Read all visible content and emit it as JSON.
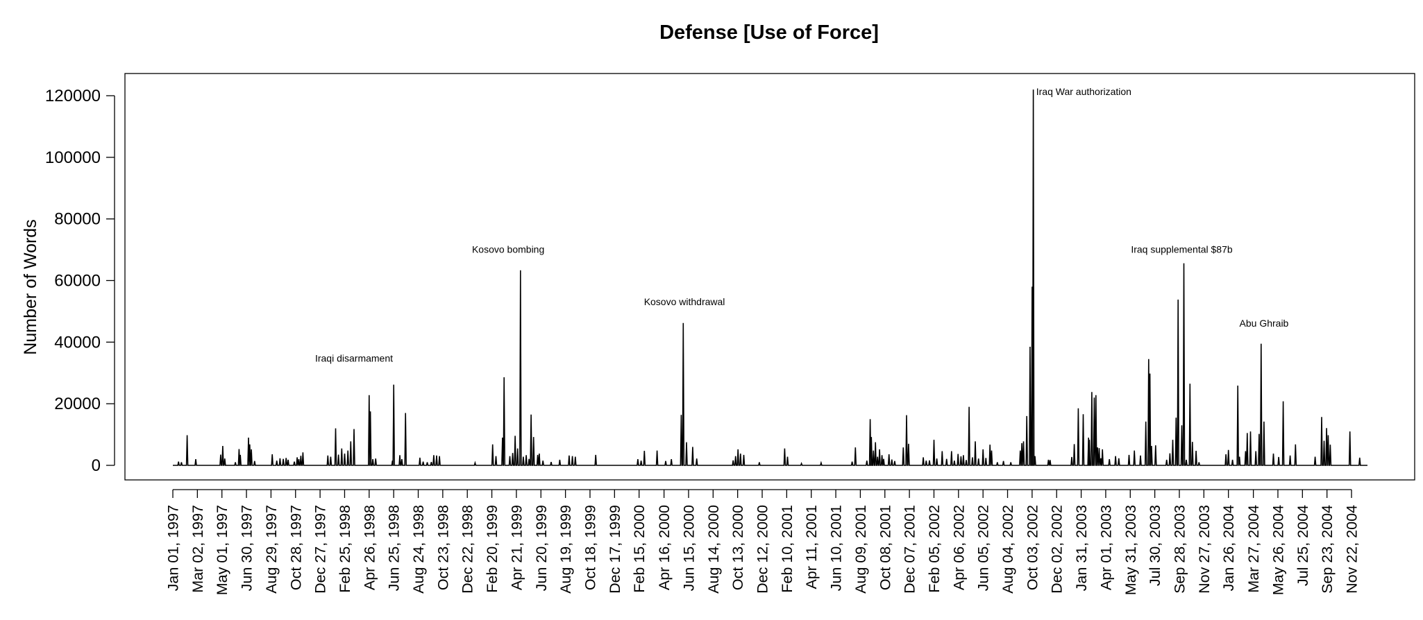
{
  "chart_data": {
    "type": "line",
    "title": "Defense [Use of Force]",
    "xlabel": "",
    "ylabel": "Number of Words",
    "ylim": [
      0,
      125000
    ],
    "yticks": [
      0,
      20000,
      40000,
      60000,
      80000,
      100000,
      120000
    ],
    "ytick_labels": [
      "0",
      "20000",
      "40000",
      "60000",
      "80000",
      "100000",
      "120000"
    ],
    "grid": false,
    "x_ticks": [
      "Jan 01, 1997",
      "Mar 02, 1997",
      "May 01, 1997",
      "Jun 30, 1997",
      "Aug 29, 1997",
      "Oct 28, 1997",
      "Dec 27, 1997",
      "Feb 25, 1998",
      "Apr 26, 1998",
      "Jun 25, 1998",
      "Aug 24, 1998",
      "Oct 23, 1998",
      "Dec 22, 1998",
      "Feb 20, 1999",
      "Apr 21, 1999",
      "Jun 20, 1999",
      "Aug 19, 1999",
      "Oct 18, 1999",
      "Dec 17, 1999",
      "Feb 15, 2000",
      "Apr 16, 2000",
      "Jun 15, 2000",
      "Aug 14, 2000",
      "Oct 13, 2000",
      "Dec 12, 2000",
      "Feb 10, 2001",
      "Apr 11, 2001",
      "Jun 10, 2001",
      "Aug 09, 2001",
      "Oct 08, 2001",
      "Dec 07, 2001",
      "Feb 05, 2002",
      "Apr 06, 2002",
      "Jun 05, 2002",
      "Aug 04, 2002",
      "Oct 03, 2002",
      "Dec 02, 2002",
      "Jan 31, 2003",
      "Apr 01, 2003",
      "May 31, 2003",
      "Jul 30, 2003",
      "Sep 28, 2003",
      "Nov 27, 2003",
      "Jan 26, 2004",
      "Mar 27, 2004",
      "May 26, 2004",
      "Jul 25, 2004",
      "Sep 23, 2004",
      "Nov 22, 2004"
    ],
    "x_range": [
      "Jan 01, 1997",
      "Dec 31, 2004"
    ],
    "series": [
      {
        "values_note": "",
        "points": [
          [
            "1997-01-15",
            1200
          ],
          [
            "1997-01-22",
            1000
          ],
          [
            "1997-02-05",
            9800
          ],
          [
            "1997-02-26",
            2000
          ],
          [
            "1997-04-28",
            3500
          ],
          [
            "1997-05-03",
            6300
          ],
          [
            "1997-05-08",
            2200
          ],
          [
            "1997-06-03",
            1000
          ],
          [
            "1997-06-12",
            5300
          ],
          [
            "1997-06-15",
            3400
          ],
          [
            "1997-07-05",
            9000
          ],
          [
            "1997-07-08",
            6800
          ],
          [
            "1997-07-12",
            5200
          ],
          [
            "1997-07-20",
            1400
          ],
          [
            "1997-09-01",
            3600
          ],
          [
            "1997-09-12",
            1500
          ],
          [
            "1997-09-20",
            2300
          ],
          [
            "1997-09-28",
            2100
          ],
          [
            "1997-10-05",
            2400
          ],
          [
            "1997-10-10",
            1800
          ],
          [
            "1997-10-25",
            1200
          ],
          [
            "1997-11-01",
            2600
          ],
          [
            "1997-11-05",
            2000
          ],
          [
            "1997-11-10",
            3100
          ],
          [
            "1997-11-15",
            4200
          ],
          [
            "1998-01-15",
            3200
          ],
          [
            "1998-01-22",
            2800
          ],
          [
            "1998-02-03",
            12000
          ],
          [
            "1998-02-10",
            3500
          ],
          [
            "1998-02-18",
            5500
          ],
          [
            "1998-02-25",
            3800
          ],
          [
            "1998-03-05",
            4800
          ],
          [
            "1998-03-12",
            7800
          ],
          [
            "1998-03-20",
            11800
          ],
          [
            "1998-04-26",
            22800
          ],
          [
            "1998-04-29",
            17500
          ],
          [
            "1998-05-05",
            2000
          ],
          [
            "1998-05-12",
            2200
          ],
          [
            "1998-06-22",
            1500
          ],
          [
            "1998-06-25",
            26200
          ],
          [
            "1998-07-10",
            3300
          ],
          [
            "1998-07-15",
            2000
          ],
          [
            "1998-07-24",
            17000
          ],
          [
            "1998-08-28",
            2500
          ],
          [
            "1998-09-05",
            1200
          ],
          [
            "1998-09-15",
            1000
          ],
          [
            "1998-09-25",
            1100
          ],
          [
            "1998-10-01",
            3300
          ],
          [
            "1998-10-08",
            3200
          ],
          [
            "1998-10-15",
            3000
          ],
          [
            "1999-01-10",
            800
          ],
          [
            "1999-02-22",
            6800
          ],
          [
            "1999-03-02",
            3000
          ],
          [
            "1999-03-18",
            9000
          ],
          [
            "1999-03-22",
            28600
          ],
          [
            "1999-04-05",
            3000
          ],
          [
            "1999-04-12",
            4000
          ],
          [
            "1999-04-18",
            9600
          ],
          [
            "1999-04-24",
            5500
          ],
          [
            "1999-05-01",
            63300
          ],
          [
            "1999-05-08",
            2800
          ],
          [
            "1999-05-15",
            3300
          ],
          [
            "1999-05-22",
            2100
          ],
          [
            "1999-05-27",
            16500
          ],
          [
            "1999-06-02",
            9200
          ],
          [
            "1999-06-12",
            3400
          ],
          [
            "1999-06-16",
            3800
          ],
          [
            "1999-06-25",
            1500
          ],
          [
            "1999-07-15",
            1100
          ],
          [
            "1999-08-05",
            1800
          ],
          [
            "1999-08-28",
            3200
          ],
          [
            "1999-09-05",
            3000
          ],
          [
            "1999-09-12",
            2800
          ],
          [
            "1999-11-01",
            3400
          ],
          [
            "2000-02-12",
            2000
          ],
          [
            "2000-02-20",
            1500
          ],
          [
            "2000-02-28",
            4700
          ],
          [
            "2000-03-30",
            4800
          ],
          [
            "2000-04-20",
            1400
          ],
          [
            "2000-05-04",
            2000
          ],
          [
            "2000-05-28",
            16400
          ],
          [
            "2000-06-02",
            46200
          ],
          [
            "2000-06-10",
            7500
          ],
          [
            "2000-06-25",
            6000
          ],
          [
            "2000-07-05",
            2200
          ],
          [
            "2000-10-02",
            1600
          ],
          [
            "2000-10-08",
            3000
          ],
          [
            "2000-10-14",
            5200
          ],
          [
            "2000-10-20",
            3800
          ],
          [
            "2000-10-28",
            3400
          ],
          [
            "2000-12-05",
            1000
          ],
          [
            "2001-02-05",
            5500
          ],
          [
            "2001-02-12",
            2800
          ],
          [
            "2001-03-18",
            600
          ],
          [
            "2001-05-05",
            800
          ],
          [
            "2001-07-20",
            1200
          ],
          [
            "2001-07-28",
            5800
          ],
          [
            "2001-08-25",
            1500
          ],
          [
            "2001-09-02",
            15000
          ],
          [
            "2001-09-05",
            9200
          ],
          [
            "2001-09-10",
            4800
          ],
          [
            "2001-09-15",
            7500
          ],
          [
            "2001-09-20",
            2800
          ],
          [
            "2001-09-25",
            5200
          ],
          [
            "2001-10-01",
            3300
          ],
          [
            "2001-10-05",
            2100
          ],
          [
            "2001-10-18",
            3600
          ],
          [
            "2001-10-25",
            1900
          ],
          [
            "2001-11-01",
            1400
          ],
          [
            "2001-11-22",
            5800
          ],
          [
            "2001-11-30",
            16300
          ],
          [
            "2001-12-05",
            7000
          ],
          [
            "2002-01-10",
            2600
          ],
          [
            "2002-01-17",
            1500
          ],
          [
            "2002-01-25",
            1600
          ],
          [
            "2002-02-05",
            8300
          ],
          [
            "2002-02-12",
            2200
          ],
          [
            "2002-02-25",
            4600
          ],
          [
            "2002-03-08",
            2100
          ],
          [
            "2002-03-20",
            4600
          ],
          [
            "2002-03-27",
            1500
          ],
          [
            "2002-04-05",
            3700
          ],
          [
            "2002-04-12",
            2900
          ],
          [
            "2002-04-18",
            3300
          ],
          [
            "2002-04-25",
            1700
          ],
          [
            "2002-05-02",
            19000
          ],
          [
            "2002-05-10",
            2600
          ],
          [
            "2002-05-17",
            7800
          ],
          [
            "2002-05-25",
            2200
          ],
          [
            "2002-06-05",
            5200
          ],
          [
            "2002-06-12",
            2400
          ],
          [
            "2002-06-22",
            6700
          ],
          [
            "2002-06-26",
            4800
          ],
          [
            "2002-07-10",
            1000
          ],
          [
            "2002-07-25",
            1400
          ],
          [
            "2002-08-12",
            1000
          ],
          [
            "2002-09-04",
            4800
          ],
          [
            "2002-09-08",
            7200
          ],
          [
            "2002-09-12",
            7800
          ],
          [
            "2002-09-20",
            16000
          ],
          [
            "2002-09-28",
            38500
          ],
          [
            "2002-10-03",
            58000
          ],
          [
            "2002-10-06",
            122000
          ],
          [
            "2002-10-10",
            3000
          ],
          [
            "2002-11-12",
            1800
          ],
          [
            "2002-11-16",
            1700
          ],
          [
            "2003-01-08",
            2700
          ],
          [
            "2003-01-14",
            6900
          ],
          [
            "2003-01-24",
            18500
          ],
          [
            "2003-02-05",
            16600
          ],
          [
            "2003-02-18",
            9000
          ],
          [
            "2003-02-20",
            8300
          ],
          [
            "2003-02-26",
            23800
          ],
          [
            "2003-03-04",
            22000
          ],
          [
            "2003-03-08",
            22800
          ],
          [
            "2003-03-12",
            5800
          ],
          [
            "2003-03-16",
            5600
          ],
          [
            "2003-03-20",
            2300
          ],
          [
            "2003-03-24",
            5200
          ],
          [
            "2003-04-10",
            2000
          ],
          [
            "2003-04-25",
            3000
          ],
          [
            "2003-05-03",
            2300
          ],
          [
            "2003-05-28",
            3400
          ],
          [
            "2003-06-10",
            4800
          ],
          [
            "2003-06-25",
            3200
          ],
          [
            "2003-07-08",
            14200
          ],
          [
            "2003-07-15",
            34500
          ],
          [
            "2003-07-18",
            29800
          ],
          [
            "2003-07-22",
            6300
          ],
          [
            "2003-08-01",
            6500
          ],
          [
            "2003-08-28",
            1800
          ],
          [
            "2003-09-05",
            3900
          ],
          [
            "2003-09-12",
            8300
          ],
          [
            "2003-09-20",
            15500
          ],
          [
            "2003-09-25",
            53800
          ],
          [
            "2003-10-04",
            13000
          ],
          [
            "2003-10-09",
            65600
          ],
          [
            "2003-10-15",
            1800
          ],
          [
            "2003-10-24",
            26500
          ],
          [
            "2003-10-30",
            7600
          ],
          [
            "2003-11-08",
            4700
          ],
          [
            "2003-11-15",
            1000
          ],
          [
            "2004-01-20",
            3600
          ],
          [
            "2004-01-26",
            5000
          ],
          [
            "2004-02-05",
            1800
          ],
          [
            "2004-02-18",
            25900
          ],
          [
            "2004-02-22",
            2800
          ],
          [
            "2004-03-08",
            4600
          ],
          [
            "2004-03-12",
            10500
          ],
          [
            "2004-03-20",
            11000
          ],
          [
            "2004-04-02",
            4600
          ],
          [
            "2004-04-10",
            10200
          ],
          [
            "2004-04-15",
            39500
          ],
          [
            "2004-04-22",
            14200
          ],
          [
            "2004-05-15",
            3800
          ],
          [
            "2004-05-28",
            2700
          ],
          [
            "2004-06-08",
            20800
          ],
          [
            "2004-06-25",
            3200
          ],
          [
            "2004-07-08",
            6800
          ],
          [
            "2004-08-25",
            2800
          ],
          [
            "2004-09-10",
            15700
          ],
          [
            "2004-09-16",
            8000
          ],
          [
            "2004-09-22",
            12100
          ],
          [
            "2004-09-26",
            9800
          ],
          [
            "2004-10-01",
            6700
          ],
          [
            "2004-11-18",
            11000
          ],
          [
            "2004-12-12",
            2500
          ]
        ]
      }
    ],
    "annotations": [
      {
        "text": "Iraqi disarmament",
        "x": "1998-03-20",
        "y": 33700
      },
      {
        "text": "Kosovo bombing",
        "x": "1999-04-01",
        "y": 69000
      },
      {
        "text": "Kosovo withdrawal",
        "x": "2000-06-05",
        "y": 52000
      },
      {
        "text": "Iraq War authorization",
        "x": "2002-10-13",
        "y": 120200,
        "anchor": "start"
      },
      {
        "text": "Iraq supplemental $87b",
        "x": "2003-10-04",
        "y": 69000
      },
      {
        "text": "Abu Ghraib",
        "x": "2004-04-22",
        "y": 45000
      }
    ]
  }
}
